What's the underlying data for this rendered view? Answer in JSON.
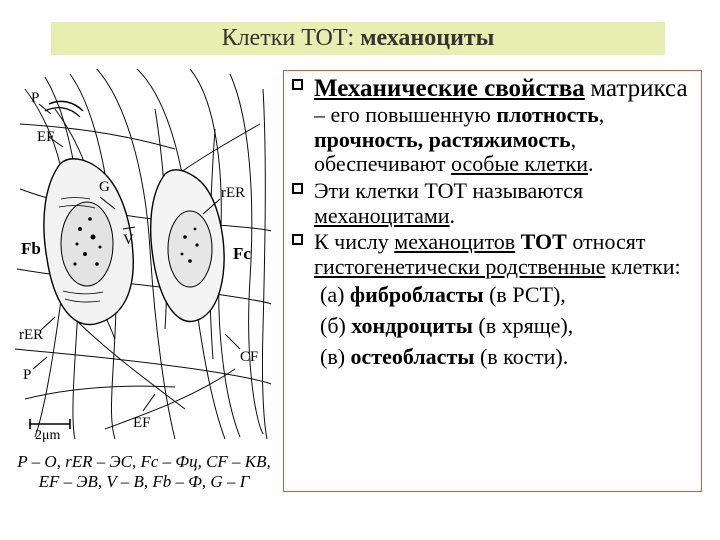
{
  "title": {
    "plain": "Клетки ТОТ: ",
    "bold": "механоциты"
  },
  "figure": {
    "caption_line1": "P – O, rER – ЭС, Fc – Фц, CF – КВ,",
    "caption_line2": "EF – ЭВ, V – В, Fb – Ф, G – Г",
    "labels": {
      "P_top": "P",
      "EF_top": "EF",
      "G": "G",
      "V": "V",
      "rER_right": "rER",
      "Fb": "Fb",
      "Fc": "Fc",
      "rER_left": "rER",
      "P_left": "P",
      "CF": "CF",
      "EF_bottom": "EF",
      "scale": "2μm"
    }
  },
  "bullets": {
    "b1_html": "<span class='u b big'>Механические свойства</span> <span class='big'>матрикса</span> – его повышенную <span class='b'>плотность</span>, <span class='b'>прочность, растяжимость</span>, обеспечивают <span class='u'>особые клетки</span>.",
    "b2_html": "Эти клетки ТОТ называются <span class='u'>механоцитами</span>.",
    "b3_html": "К числу <span class='u'>механоцитов</span> <span class='b'>ТОТ</span> относят <span class='u'>гистогенетически родственные</span> клетки:"
  },
  "sublines": {
    "a": "(а) <span class='b'>фибробласты</span> (в РСТ),",
    "b": "(б) <span class='b'>хондроциты</span> (в хряще),",
    "c": "(в) <span class='b'>остеобласты</span> (в кости)."
  },
  "colors": {
    "title_band_bg": "#e6eeb0",
    "panel_border": "#d85a3a",
    "text": "#000000"
  }
}
